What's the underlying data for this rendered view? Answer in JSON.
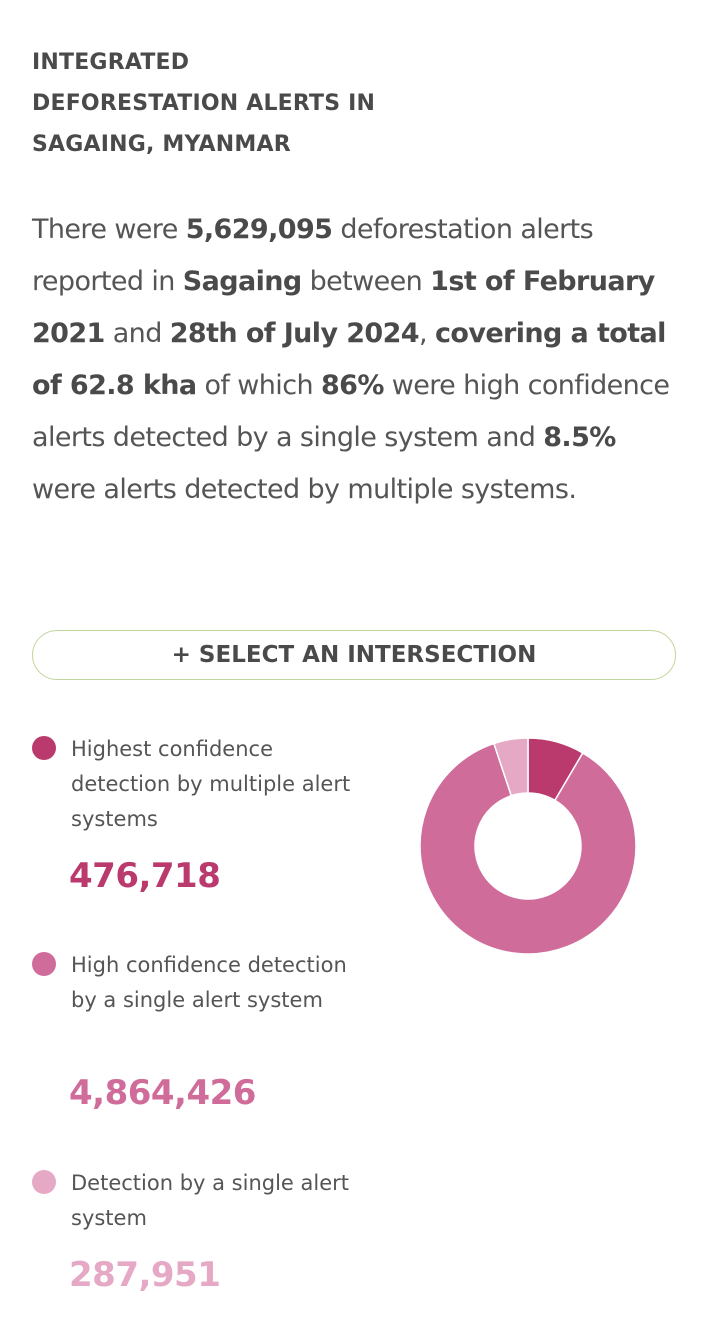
{
  "widget": {
    "title_lines": [
      "INTEGRATED",
      "DEFORESTATION ALERTS IN",
      "SAGAING, MYANMAR"
    ]
  },
  "sentence": {
    "p1": "There were ",
    "total_alerts": "5,629,095",
    "p2": " deforestation alerts reported in ",
    "location": "Sagaing",
    "p3": " between ",
    "start_date": "1st of February 2021",
    "p4": " and ",
    "end_date": "28th of July 2024",
    "p5": ", ",
    "coverage": "covering a total of 62.8 kha",
    "p6": " of which ",
    "high_pct": "86%",
    "p7": " were high confidence alerts detected by a single system and ",
    "multi_pct": "8.5%",
    "p8": " were alerts detected by multiple systems."
  },
  "select_button": {
    "label": "+ SELECT AN INTERSECTION"
  },
  "legend": [
    {
      "label": "Highest confidence detection by multiple alert systems",
      "value": "476,718",
      "color": "#bb3a6e"
    },
    {
      "label": "High confidence detection by a single alert system",
      "value": "4,864,426",
      "color": "#cf6c99"
    },
    {
      "label": "Detection by a single alert system",
      "value": "287,951",
      "color": "#e6a9c5"
    }
  ],
  "chart_data": {
    "type": "pie",
    "variant": "donut",
    "categories": [
      "Highest confidence detection by multiple alert systems",
      "High confidence detection by a single alert system",
      "Detection by a single alert system"
    ],
    "values": [
      476718,
      4864426,
      287951
    ],
    "colors": [
      "#bb3a6e",
      "#cf6c99",
      "#e6a9c5"
    ]
  }
}
